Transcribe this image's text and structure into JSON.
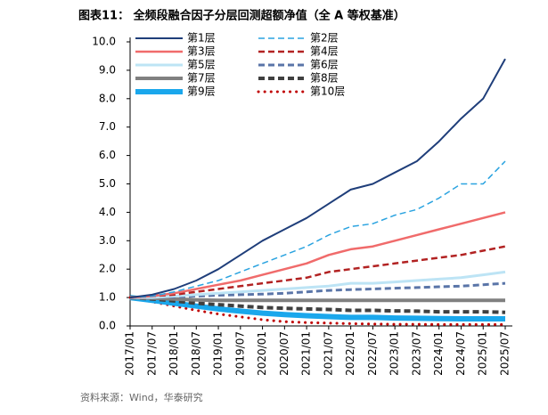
{
  "chart_data": {
    "type": "line",
    "title": "图表11：  全频段融合因子分层回测超额净值（全 A 等权基准）",
    "source": "资料来源：Wind，华泰研究",
    "categories": [
      "2017/01",
      "2017/07",
      "2018/01",
      "2018/07",
      "2019/01",
      "2019/07",
      "2020/01",
      "2020/07",
      "2021/01",
      "2021/07",
      "2022/01",
      "2022/07",
      "2023/01",
      "2023/07",
      "2024/01",
      "2024/07",
      "2025/01",
      "2025/07"
    ],
    "ylim": [
      0,
      10
    ],
    "yticks": [
      {
        "value": 0,
        "label": "0.0"
      },
      {
        "value": 1,
        "label": "1.0"
      },
      {
        "value": 2,
        "label": "2.0"
      },
      {
        "value": 3,
        "label": "3.0"
      },
      {
        "value": 4,
        "label": "4.0"
      },
      {
        "value": 5,
        "label": "5.0"
      },
      {
        "value": 6,
        "label": "6.0"
      },
      {
        "value": 7,
        "label": "7.0"
      },
      {
        "value": 8,
        "label": "8.0"
      },
      {
        "value": 9,
        "label": "9.0"
      },
      {
        "value": 10,
        "label": "10.0"
      }
    ],
    "grid": false,
    "series": [
      {
        "name": "第1层",
        "color": "#1f3e7a",
        "style": "solid",
        "linewidth": 2,
        "values": [
          1.0,
          1.1,
          1.3,
          1.6,
          2.0,
          2.5,
          3.0,
          3.4,
          3.8,
          4.3,
          4.8,
          5.0,
          5.4,
          5.8,
          6.5,
          7.3,
          8.0,
          9.4
        ]
      },
      {
        "name": "第2层",
        "color": "#2aa3e0",
        "style": "dashed",
        "linewidth": 1.5,
        "values": [
          1.0,
          1.05,
          1.2,
          1.4,
          1.6,
          1.9,
          2.2,
          2.5,
          2.8,
          3.2,
          3.5,
          3.6,
          3.9,
          4.1,
          4.5,
          5.0,
          5.0,
          5.8
        ]
      },
      {
        "name": "第3层",
        "color": "#f06b6b",
        "style": "solid",
        "linewidth": 2.5,
        "values": [
          1.0,
          1.05,
          1.15,
          1.3,
          1.45,
          1.6,
          1.8,
          2.0,
          2.2,
          2.5,
          2.7,
          2.8,
          3.0,
          3.2,
          3.4,
          3.6,
          3.8,
          4.0
        ]
      },
      {
        "name": "第4层",
        "color": "#b22222",
        "style": "dashed",
        "linewidth": 2.5,
        "values": [
          1.0,
          1.05,
          1.1,
          1.2,
          1.3,
          1.4,
          1.5,
          1.6,
          1.7,
          1.9,
          2.0,
          2.1,
          2.2,
          2.3,
          2.4,
          2.5,
          2.65,
          2.8
        ]
      },
      {
        "name": "第5层",
        "color": "#bde4f5",
        "style": "solid",
        "linewidth": 3,
        "values": [
          1.0,
          1.0,
          1.05,
          1.1,
          1.15,
          1.2,
          1.25,
          1.3,
          1.35,
          1.4,
          1.5,
          1.5,
          1.55,
          1.6,
          1.65,
          1.7,
          1.8,
          1.9
        ]
      },
      {
        "name": "第6层",
        "color": "#5a75a8",
        "style": "dashed",
        "linewidth": 3,
        "values": [
          1.0,
          1.0,
          1.02,
          1.05,
          1.08,
          1.1,
          1.12,
          1.15,
          1.2,
          1.25,
          1.28,
          1.3,
          1.33,
          1.35,
          1.38,
          1.4,
          1.45,
          1.5
        ]
      },
      {
        "name": "第7层",
        "color": "#808080",
        "style": "solid",
        "linewidth": 4,
        "values": [
          1.0,
          0.98,
          0.95,
          0.92,
          0.9,
          0.9,
          0.9,
          0.9,
          0.9,
          0.9,
          0.9,
          0.9,
          0.9,
          0.9,
          0.9,
          0.9,
          0.9,
          0.9
        ]
      },
      {
        "name": "第8层",
        "color": "#404040",
        "style": "dashed",
        "linewidth": 4,
        "values": [
          1.0,
          0.95,
          0.88,
          0.8,
          0.75,
          0.7,
          0.65,
          0.62,
          0.6,
          0.58,
          0.55,
          0.55,
          0.53,
          0.52,
          0.5,
          0.5,
          0.5,
          0.48
        ]
      },
      {
        "name": "第9层",
        "color": "#1aa7ec",
        "style": "solid",
        "linewidth": 6,
        "values": [
          1.0,
          0.9,
          0.8,
          0.7,
          0.6,
          0.52,
          0.45,
          0.4,
          0.36,
          0.33,
          0.3,
          0.3,
          0.28,
          0.27,
          0.26,
          0.25,
          0.25,
          0.25
        ]
      },
      {
        "name": "第10层",
        "color": "#c00000",
        "style": "dotted",
        "linewidth": 3,
        "values": [
          1.0,
          0.85,
          0.7,
          0.55,
          0.42,
          0.32,
          0.22,
          0.15,
          0.12,
          0.1,
          0.08,
          0.07,
          0.06,
          0.06,
          0.05,
          0.05,
          0.05,
          0.05
        ]
      }
    ]
  }
}
